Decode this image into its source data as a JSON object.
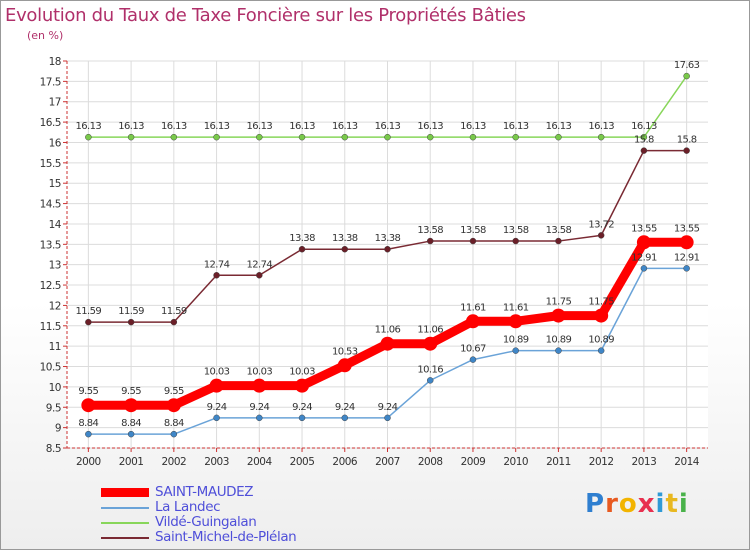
{
  "title": "Evolution du Taux de Taxe Foncière sur les Propriétés Bâties",
  "logo": {
    "text": "Proxiti",
    "colors": [
      "#2f7fd0",
      "#e85a20",
      "#f2b400",
      "#e83050",
      "#2f9ad6",
      "#e8b820",
      "#49b24a"
    ]
  },
  "chart_data": {
    "type": "line",
    "title": "Evolution du Taux de Taxe Foncière sur les Propriétés Bâties",
    "ylabel": "(en %)",
    "xlabel": "",
    "ylim": [
      8.5,
      18
    ],
    "yticks": [
      "8.5",
      "9",
      "9.5",
      "10",
      "10.5",
      "11",
      "11.5",
      "12",
      "12.5",
      "13",
      "13.5",
      "14",
      "14.5",
      "15",
      "15.5",
      "16",
      "16.5",
      "17",
      "17.5",
      "18"
    ],
    "x": [
      "2000",
      "2001",
      "2002",
      "2003",
      "2004",
      "2005",
      "2006",
      "2007",
      "2008",
      "2009",
      "2010",
      "2011",
      "2012",
      "2013",
      "2014"
    ],
    "grid": true,
    "legend_position": "bottom-left",
    "series": [
      {
        "name": "Vildé-Guingalan",
        "color": "#88d65a",
        "marker": "#79c94a",
        "values": [
          16.13,
          16.13,
          16.13,
          16.13,
          16.13,
          16.13,
          16.13,
          16.13,
          16.13,
          16.13,
          16.13,
          16.13,
          16.13,
          16.13,
          17.63
        ],
        "labels": [
          "16.13",
          "16.13",
          "16.13",
          "16.13",
          "16.13",
          "16.13",
          "16.13",
          "16.13",
          "16.13",
          "16.13",
          "16.13",
          "16.13",
          "16.13",
          "16.13",
          "17.63"
        ]
      },
      {
        "name": "Saint-Michel-de-Plélan",
        "color": "#7a2a33",
        "marker": "#6b1f28",
        "values": [
          11.59,
          11.59,
          11.59,
          12.74,
          12.74,
          13.38,
          13.38,
          13.38,
          13.58,
          13.58,
          13.58,
          13.58,
          13.72,
          15.8,
          15.8
        ],
        "labels": [
          "11.59",
          "11.59",
          "11.59",
          "12.74",
          "12.74",
          "13.38",
          "13.38",
          "13.38",
          "13.58",
          "13.58",
          "13.58",
          "13.58",
          "13.72",
          "15.8",
          "15.8"
        ]
      },
      {
        "name": "La Landec",
        "color": "#6aa3d8",
        "marker": "#3f86c7",
        "values": [
          8.84,
          8.84,
          8.84,
          9.24,
          9.24,
          9.24,
          9.24,
          9.24,
          10.16,
          10.67,
          10.89,
          10.89,
          10.89,
          12.91,
          12.91
        ],
        "labels": [
          "8.84",
          "8.84",
          "8.84",
          "9.24",
          "9.24",
          "9.24",
          "9.24",
          "9.24",
          "10.16",
          "10.67",
          "10.89",
          "10.89",
          "10.89",
          "12.91",
          "12.91"
        ]
      },
      {
        "name": "SAINT-MAUDEZ",
        "color": "#ff0000",
        "marker": "#ff0000",
        "values": [
          9.55,
          9.55,
          9.55,
          10.03,
          10.03,
          10.03,
          10.53,
          11.06,
          11.06,
          11.61,
          11.61,
          11.75,
          11.75,
          13.55,
          13.55
        ],
        "labels": [
          "9.55",
          "9.55",
          "9.55",
          "10.03",
          "10.03",
          "10.03",
          "10.53",
          "11.06",
          "11.06",
          "11.61",
          "11.61",
          "11.75",
          "11.75",
          "13.55",
          "13.55"
        ]
      }
    ]
  },
  "legend": [
    {
      "label": "SAINT-MAUDEZ",
      "color": "#ff0000"
    },
    {
      "label": "La Landec",
      "color": "#6aa3d8"
    },
    {
      "label": "Vildé-Guingalan",
      "color": "#88d65a"
    },
    {
      "label": "Saint-Michel-de-Plélan",
      "color": "#7a2a33"
    }
  ]
}
